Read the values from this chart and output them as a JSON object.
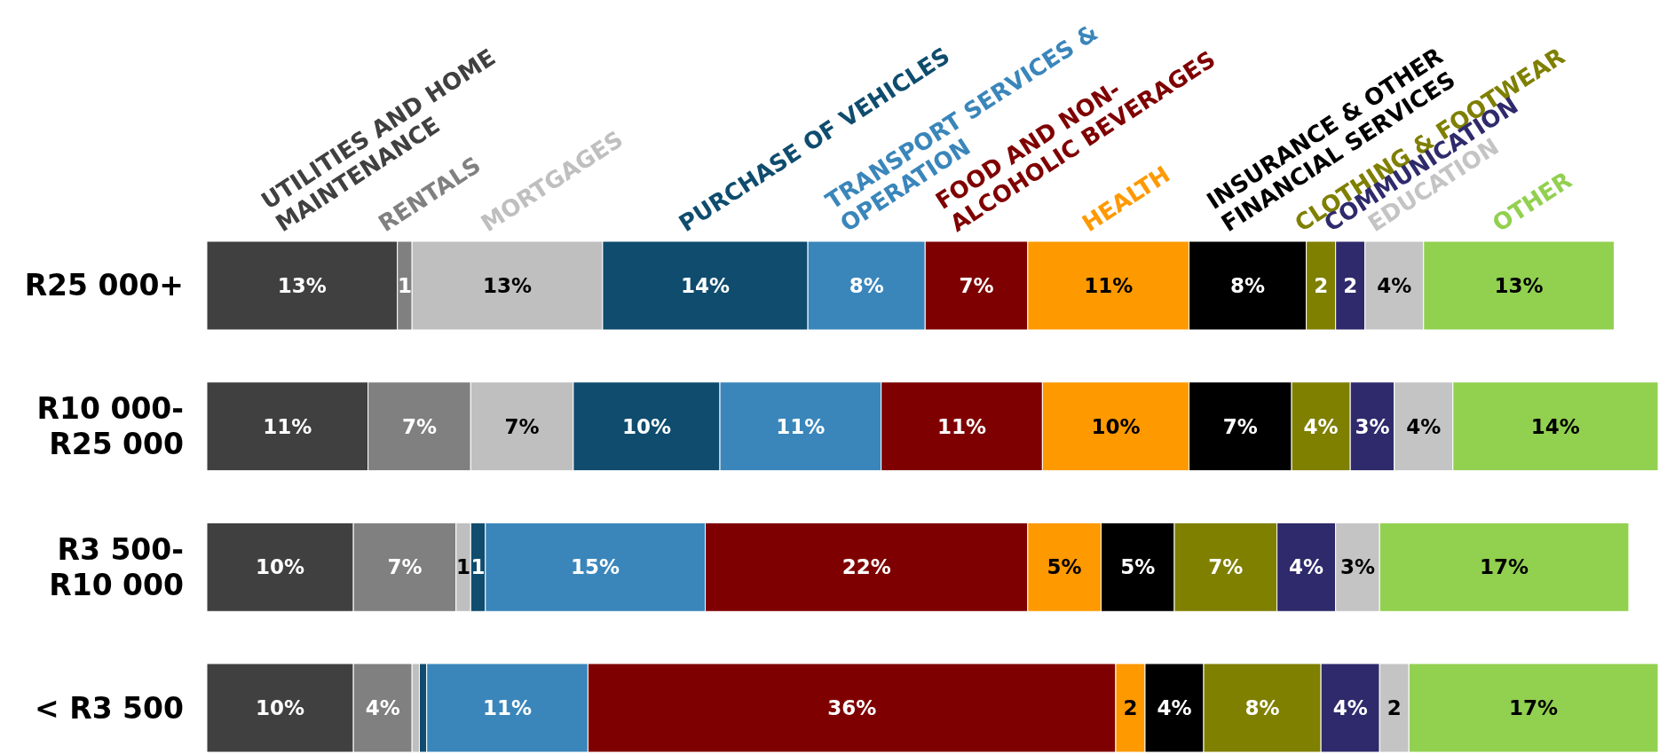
{
  "chart_data": {
    "type": "bar",
    "orientation": "horizontal",
    "stacked": true,
    "categories": [
      "R25 000+",
      "R10 000-R25 000",
      "R3 500-R10 000",
      "< R3 500"
    ],
    "tick_labels": "y",
    "series": [
      {
        "name": "UTILITIES AND HOME MAINTENANCE",
        "color": "#404040",
        "values": [
          13,
          11,
          10,
          10
        ],
        "value_labels": [
          "13%",
          "11%",
          "10%",
          "10%"
        ]
      },
      {
        "name": "RENTALS",
        "color": "#808080",
        "values": [
          1,
          7,
          7,
          4
        ],
        "value_labels": [
          "1",
          "7%",
          "7%",
          "4%"
        ]
      },
      {
        "name": "MORTGAGES",
        "color": "#bfbfbf",
        "values": [
          13,
          7,
          1,
          0.5
        ],
        "value_labels": [
          "13%",
          "7%",
          "1",
          null
        ]
      },
      {
        "name": "PURCHASE OF VEHICLES",
        "color": "#0f4c6e",
        "values": [
          14,
          10,
          1,
          0.5
        ],
        "value_labels": [
          "14%",
          "10%",
          "1",
          null
        ]
      },
      {
        "name": "TRANSPORT SERVICES & OPERATION",
        "color": "#3a86bb",
        "values": [
          8,
          11,
          15,
          11
        ],
        "value_labels": [
          "8%",
          "11%",
          "15%",
          "11%"
        ]
      },
      {
        "name": "FOOD AND NON-ALCOHOLIC BEVERAGES",
        "color": "#7f0000",
        "values": [
          7,
          11,
          22,
          36
        ],
        "value_labels": [
          "7%",
          "11%",
          "22%",
          "36%"
        ]
      },
      {
        "name": "HEALTH",
        "color": "#ff9900",
        "values": [
          11,
          10,
          5,
          2
        ],
        "value_labels": [
          "11%",
          "10%",
          "5%",
          "2"
        ]
      },
      {
        "name": "INSURANCE & OTHER FINANCIAL SERVICES",
        "color": "#000000",
        "values": [
          8,
          7,
          5,
          4
        ],
        "value_labels": [
          "8%",
          "7%",
          "5%",
          "4%"
        ]
      },
      {
        "name": "CLOTHING & FOOTWEAR",
        "color": "#7f7f00",
        "values": [
          2,
          4,
          7,
          8
        ],
        "value_labels": [
          "2",
          "4%",
          "7%",
          "8%"
        ]
      },
      {
        "name": "COMMUNICATION",
        "color": "#2e2a6b",
        "values": [
          2,
          3,
          4,
          4
        ],
        "value_labels": [
          "2",
          "3%",
          "4%",
          "4%"
        ]
      },
      {
        "name": "EDUCATION",
        "color": "#c4c4c4",
        "values": [
          4,
          4,
          3,
          2
        ],
        "value_labels": [
          "4%",
          "4%",
          "3%",
          "2"
        ]
      },
      {
        "name": "OTHER",
        "color": "#92d050",
        "values": [
          13,
          14,
          17,
          17
        ],
        "value_labels": [
          "13%",
          "14%",
          "17%",
          "17%"
        ]
      }
    ]
  }
}
